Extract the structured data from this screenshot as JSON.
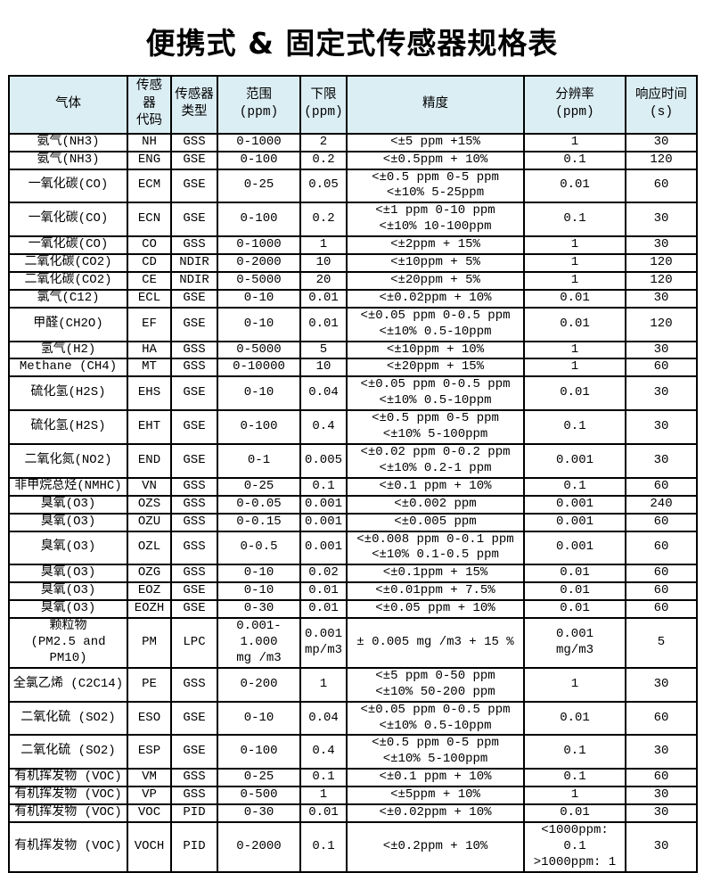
{
  "page": {
    "title": "便携式 & 固定式传感器规格表"
  },
  "colors": {
    "header_bg": "#dbeef4",
    "border": "#000000",
    "text": "#000000",
    "page_bg": "#ffffff"
  },
  "table": {
    "headers": {
      "gas": "气体",
      "code": "传感器\n代码",
      "type": "传感器\n类型",
      "range": "范围\n(ppm)",
      "limit": "下限\n(ppm)",
      "accuracy": "精度",
      "resolution": "分辨率\n(ppm)",
      "response": "响应时间\n(s)"
    },
    "rows": [
      {
        "gas": "氨气(NH3)",
        "code": "NH",
        "type": "GSS",
        "range": "0-1000",
        "limit": "2",
        "accuracy": "<±5 ppm +15%",
        "resolution": "1",
        "response": "30"
      },
      {
        "gas": "氨气(NH3)",
        "code": "ENG",
        "type": "GSE",
        "range": "0-100",
        "limit": "0.2",
        "accuracy": "<±0.5ppm + 10%",
        "resolution": "0.1",
        "response": "120"
      },
      {
        "gas": "一氧化碳(CO)",
        "code": "ECM",
        "type": "GSE",
        "range": "0-25",
        "limit": "0.05",
        "accuracy": "<±0.5 ppm 0-5 ppm\n<±10% 5-25ppm",
        "resolution": "0.01",
        "response": "60"
      },
      {
        "gas": "一氧化碳(CO)",
        "code": "ECN",
        "type": "GSE",
        "range": "0-100",
        "limit": "0.2",
        "accuracy": "<±1 ppm 0-10 ppm\n<±10% 10-100ppm",
        "resolution": "0.1",
        "response": "30"
      },
      {
        "gas": "一氧化碳(CO)",
        "code": "CO",
        "type": "GSS",
        "range": "0-1000",
        "limit": "1",
        "accuracy": "<±2ppm + 15%",
        "resolution": "1",
        "response": "30"
      },
      {
        "gas": "二氧化碳(CO2)",
        "code": "CD",
        "type": "NDIR",
        "range": "0-2000",
        "limit": "10",
        "accuracy": "<±10ppm + 5%",
        "resolution": "1",
        "response": "120"
      },
      {
        "gas": "二氧化碳(CO2)",
        "code": "CE",
        "type": "NDIR",
        "range": "0-5000",
        "limit": "20",
        "accuracy": "<±20ppm + 5%",
        "resolution": "1",
        "response": "120"
      },
      {
        "gas": "氯气(C12)",
        "code": "ECL",
        "type": "GSE",
        "range": "0-10",
        "limit": "0.01",
        "accuracy": "<±0.02ppm + 10%",
        "resolution": "0.01",
        "response": "30"
      },
      {
        "gas": "甲醛(CH2O)",
        "code": "EF",
        "type": "GSE",
        "range": "0-10",
        "limit": "0.01",
        "accuracy": "<±0.05 ppm 0-0.5 ppm\n<±10% 0.5-10ppm",
        "resolution": "0.01",
        "response": "120"
      },
      {
        "gas": "氢气(H2)",
        "code": "HA",
        "type": "GSS",
        "range": "0-5000",
        "limit": "5",
        "accuracy": "<±10ppm + 10%",
        "resolution": "1",
        "response": "30"
      },
      {
        "gas": "Methane (CH4)",
        "code": "MT",
        "type": "GSS",
        "range": "0-10000",
        "limit": "10",
        "accuracy": "<±20ppm + 15%",
        "resolution": "1",
        "response": "60"
      },
      {
        "gas": "硫化氢(H2S)",
        "code": "EHS",
        "type": "GSE",
        "range": "0-10",
        "limit": "0.04",
        "accuracy": "<±0.05 ppm 0-0.5 ppm\n<±10% 0.5-10ppm",
        "resolution": "0.01",
        "response": "30"
      },
      {
        "gas": "硫化氢(H2S)",
        "code": "EHT",
        "type": "GSE",
        "range": "0-100",
        "limit": "0.4",
        "accuracy": "<±0.5 ppm 0-5 ppm\n<±10% 5-100ppm",
        "resolution": "0.1",
        "response": "30"
      },
      {
        "gas": "二氧化氮(NO2)",
        "code": "END",
        "type": "GSE",
        "range": "0-1",
        "limit": "0.005",
        "accuracy": "<±0.02 ppm 0-0.2 ppm\n<±10% 0.2-1 ppm",
        "resolution": "0.001",
        "response": "30"
      },
      {
        "gas": "非甲烷总烃(NMHC)",
        "code": "VN",
        "type": "GSS",
        "range": "0-25",
        "limit": "0.1",
        "accuracy": "<±0.1 ppm + 10%",
        "resolution": "0.1",
        "response": "60"
      },
      {
        "gas": "臭氧(O3)",
        "code": "OZS",
        "type": "GSS",
        "range": "0-0.05",
        "limit": "0.001",
        "accuracy": "<±0.002 ppm",
        "resolution": "0.001",
        "response": "240"
      },
      {
        "gas": "臭氧(O3)",
        "code": "OZU",
        "type": "GSS",
        "range": "0-0.15",
        "limit": "0.001",
        "accuracy": "<±0.005 ppm",
        "resolution": "0.001",
        "response": "60"
      },
      {
        "gas": "臭氧(O3)",
        "code": "OZL",
        "type": "GSS",
        "range": "0-0.5",
        "limit": "0.001",
        "accuracy": "<±0.008 ppm 0-0.1 ppm\n<±10% 0.1-0.5 ppm",
        "resolution": "0.001",
        "response": "60"
      },
      {
        "gas": "臭氧(O3)",
        "code": "OZG",
        "type": "GSS",
        "range": "0-10",
        "limit": "0.02",
        "accuracy": "<±0.1ppm + 15%",
        "resolution": "0.01",
        "response": "60"
      },
      {
        "gas": "臭氧(O3)",
        "code": "EOZ",
        "type": "GSE",
        "range": "0-10",
        "limit": "0.01",
        "accuracy": "<±0.01ppm + 7.5%",
        "resolution": "0.01",
        "response": "60"
      },
      {
        "gas": "臭氧(O3)",
        "code": "EOZH",
        "type": "GSE",
        "range": "0-30",
        "limit": "0.01",
        "accuracy": "<±0.05 ppm + 10%",
        "resolution": "0.01",
        "response": "60"
      },
      {
        "gas": "颗粒物\n(PM2.5 and PM10)",
        "code": "PM",
        "type": "LPC",
        "range": "0.001-1.000\nmg /m3",
        "limit": "0.001\nmp/m3",
        "accuracy": "± 0.005 mg /m3 + 15 %",
        "resolution": "0.001\nmg/m3",
        "response": "5"
      },
      {
        "gas": "全氯乙烯 (C2C14)",
        "code": "PE",
        "type": "GSS",
        "range": "0-200",
        "limit": "1",
        "accuracy": "<±5 ppm 0-50 ppm\n<±10% 50-200 ppm",
        "resolution": "1",
        "response": "30"
      },
      {
        "gas": "二氧化硫 (SO2)",
        "code": "ESO",
        "type": "GSE",
        "range": "0-10",
        "limit": "0.04",
        "accuracy": "<±0.05 ppm 0-0.5 ppm\n<±10% 0.5-10ppm",
        "resolution": "0.01",
        "response": "60"
      },
      {
        "gas": "二氧化硫 (SO2)",
        "code": "ESP",
        "type": "GSE",
        "range": "0-100",
        "limit": "0.4",
        "accuracy": "<±0.5 ppm 0-5 ppm\n<±10% 5-100ppm",
        "resolution": "0.1",
        "response": "30"
      },
      {
        "gas": "有机挥发物 (VOC)",
        "code": "VM",
        "type": "GSS",
        "range": "0-25",
        "limit": "0.1",
        "accuracy": "<±0.1 ppm + 10%",
        "resolution": "0.1",
        "response": "60"
      },
      {
        "gas": "有机挥发物 (VOC)",
        "code": "VP",
        "type": "GSS",
        "range": "0-500",
        "limit": "1",
        "accuracy": "<±5ppm + 10%",
        "resolution": "1",
        "response": "30"
      },
      {
        "gas": "有机挥发物 (VOC)",
        "code": "VOC",
        "type": "PID",
        "range": "0-30",
        "limit": "0.01",
        "accuracy": "<±0.02ppm + 10%",
        "resolution": "0.01",
        "response": "30"
      },
      {
        "gas": "有机挥发物 (VOC)",
        "code": "VOCH",
        "type": "PID",
        "range": "0-2000",
        "limit": "0.1",
        "accuracy": "<±0.2ppm + 10%",
        "resolution": "<1000ppm: 0.1\n>1000ppm: 1",
        "response": "30"
      }
    ]
  }
}
